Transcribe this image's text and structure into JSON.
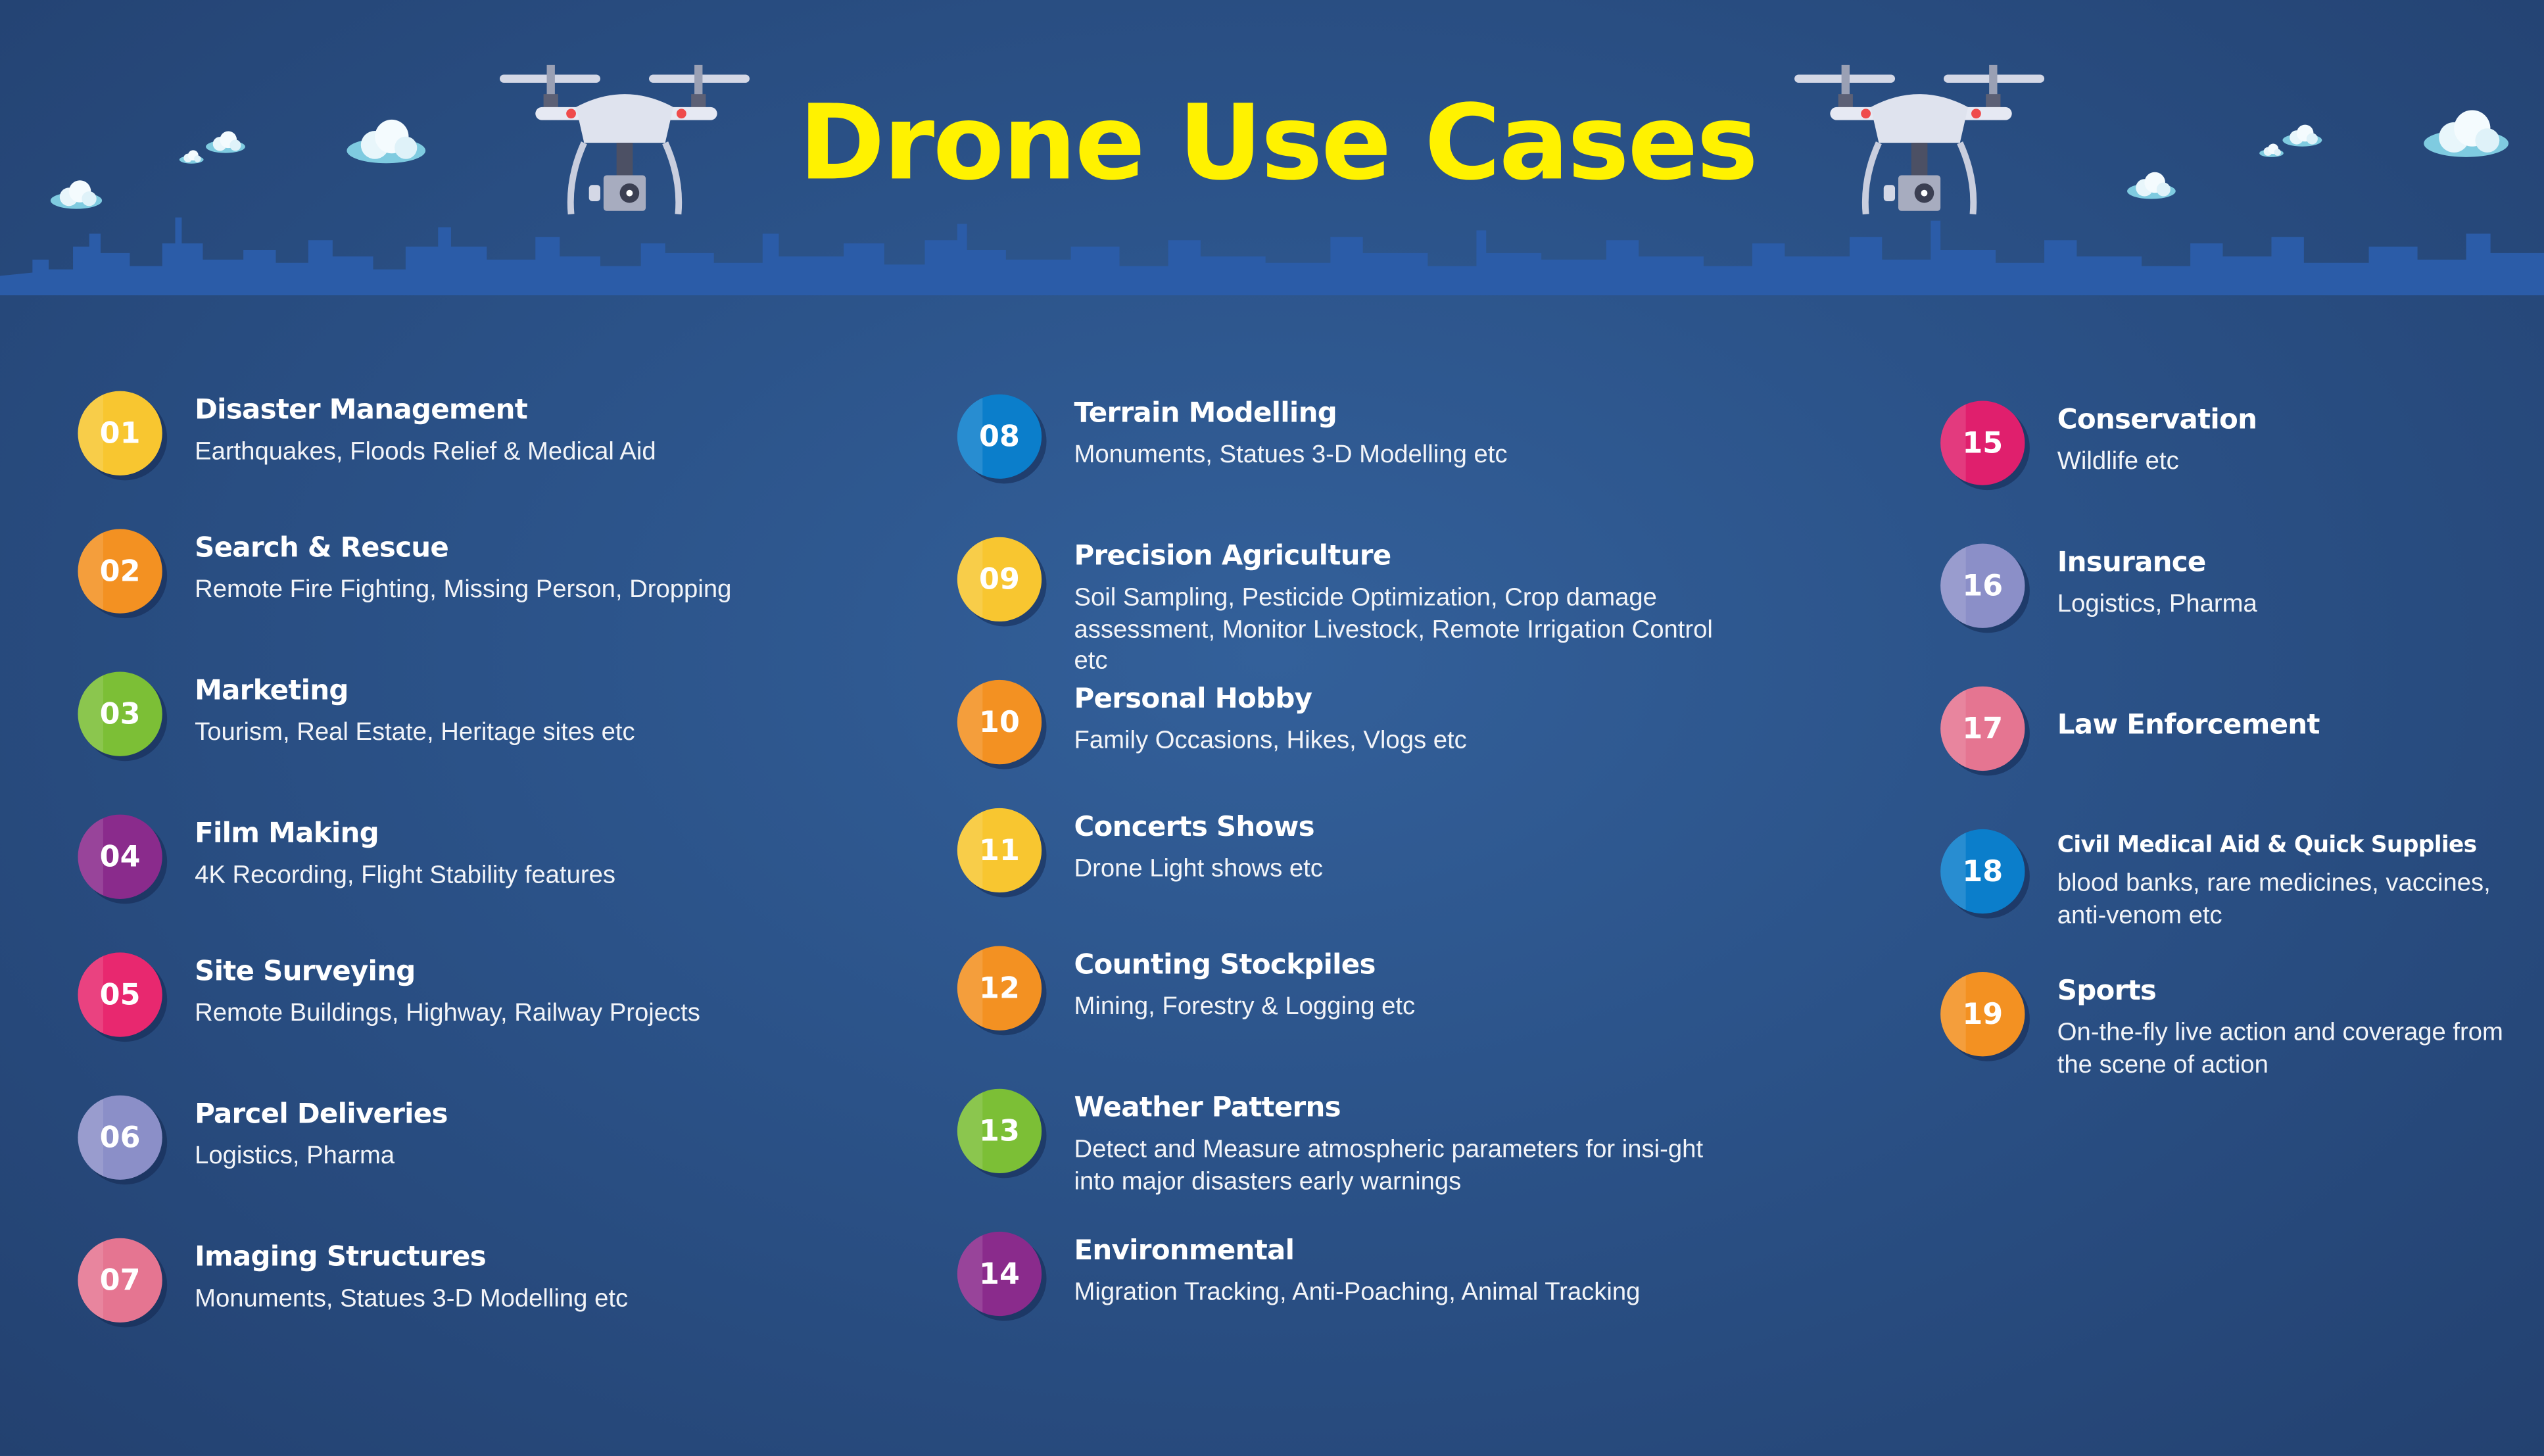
{
  "title": "Drone Use Cases",
  "colors": {
    "title": "#fff200",
    "background": "#2b5288",
    "skyline": "#2b5ca8"
  },
  "columns": [
    [
      {
        "num": "01",
        "title": "Disaster Management",
        "desc": "Earthquakes, Floods Relief & Medical Aid",
        "color": "#f8c630"
      },
      {
        "num": "02",
        "title": "Search & Rescue",
        "desc": "Remote Fire Fighting, Missing Person, Dropping",
        "color": "#f39122"
      },
      {
        "num": "03",
        "title": "Marketing",
        "desc": "Tourism, Real Estate, Heritage sites etc",
        "color": "#7cbf36"
      },
      {
        "num": "04",
        "title": "Film Making",
        "desc": "4K Recording, Flight Stability features",
        "color": "#8a2b8c"
      },
      {
        "num": "05",
        "title": "Site Surveying",
        "desc": "Remote Buildings, Highway, Railway Projects",
        "color": "#e8286f"
      },
      {
        "num": "06",
        "title": "Parcel Deliveries",
        "desc": "Logistics, Pharma",
        "color": "#8b8fc8"
      },
      {
        "num": "07",
        "title": "Imaging Structures",
        "desc": "Monuments, Statues 3-D Modelling etc",
        "color": "#e57591"
      }
    ],
    [
      {
        "num": "08",
        "title": "Terrain Modelling",
        "desc": "Monuments, Statues 3-D Modelling etc",
        "color": "#0b7ecb"
      },
      {
        "num": "09",
        "title": "Precision Agriculture",
        "desc": "Soil Sampling, Pesticide Optimization, Crop damage assessment, Monitor Livestock, Remote Irrigation Control etc",
        "color": "#f8c630"
      },
      {
        "num": "10",
        "title": "Personal Hobby",
        "desc": "Family Occasions, Hikes, Vlogs etc",
        "color": "#f39122"
      },
      {
        "num": "11",
        "title": "Concerts Shows",
        "desc": "Drone Light shows etc",
        "color": "#f8c630"
      },
      {
        "num": "12",
        "title": "Counting Stockpiles",
        "desc": "Mining, Forestry & Logging etc",
        "color": "#f39122"
      },
      {
        "num": "13",
        "title": "Weather Patterns",
        "desc": "Detect and Measure atmospheric parameters for insi-ght into major disasters early warnings",
        "color": "#7cbf36"
      },
      {
        "num": "14",
        "title": "Environmental",
        "desc": "Migration Tracking, Anti-Poaching, Animal Tracking",
        "color": "#8a2b8c"
      }
    ],
    [
      {
        "num": "15",
        "title": "Conservation",
        "desc": "Wildlife etc",
        "color": "#e01f6d"
      },
      {
        "num": "16",
        "title": "Insurance",
        "desc": "Logistics, Pharma",
        "color": "#8b8fc8"
      },
      {
        "num": "17",
        "title": "Law Enforcement",
        "desc": "",
        "color": "#e57591"
      },
      {
        "num": "18",
        "title": "Civil Medical Aid & Quick Supplies",
        "desc": "blood banks, rare medicines, vaccines, anti-venom etc",
        "color": "#0b7ecb"
      },
      {
        "num": "19",
        "title": "Sports",
        "desc": "On-the-fly live action and coverage from the scene of action",
        "color": "#f39122"
      }
    ]
  ]
}
